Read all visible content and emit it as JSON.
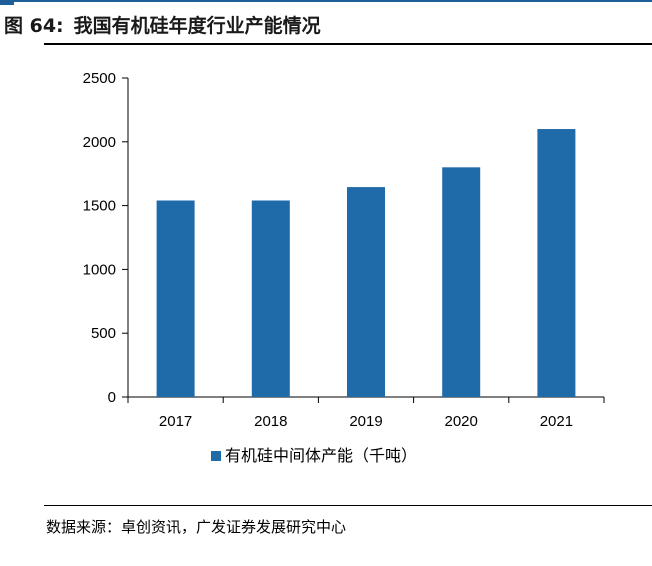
{
  "header": {
    "figure_label": "图 64:",
    "title": "我国有机硅年度行业产能情况"
  },
  "chart_data": {
    "type": "bar",
    "categories": [
      "2017",
      "2018",
      "2019",
      "2020",
      "2021"
    ],
    "series": [
      {
        "name": "有机硅中间体产能（千吨）",
        "values": [
          1540,
          1540,
          1645,
          1800,
          2100
        ]
      }
    ],
    "ylim": [
      0,
      2500
    ],
    "yticks": [
      0,
      500,
      1000,
      1500,
      2000,
      2500
    ],
    "xlabel": "",
    "ylabel": "",
    "grid": false,
    "legend": "bottom",
    "colors": {
      "bar": "#1f6aa8"
    }
  },
  "footer": {
    "source": "数据来源：卓创资讯，广发证券发展研究中心"
  }
}
